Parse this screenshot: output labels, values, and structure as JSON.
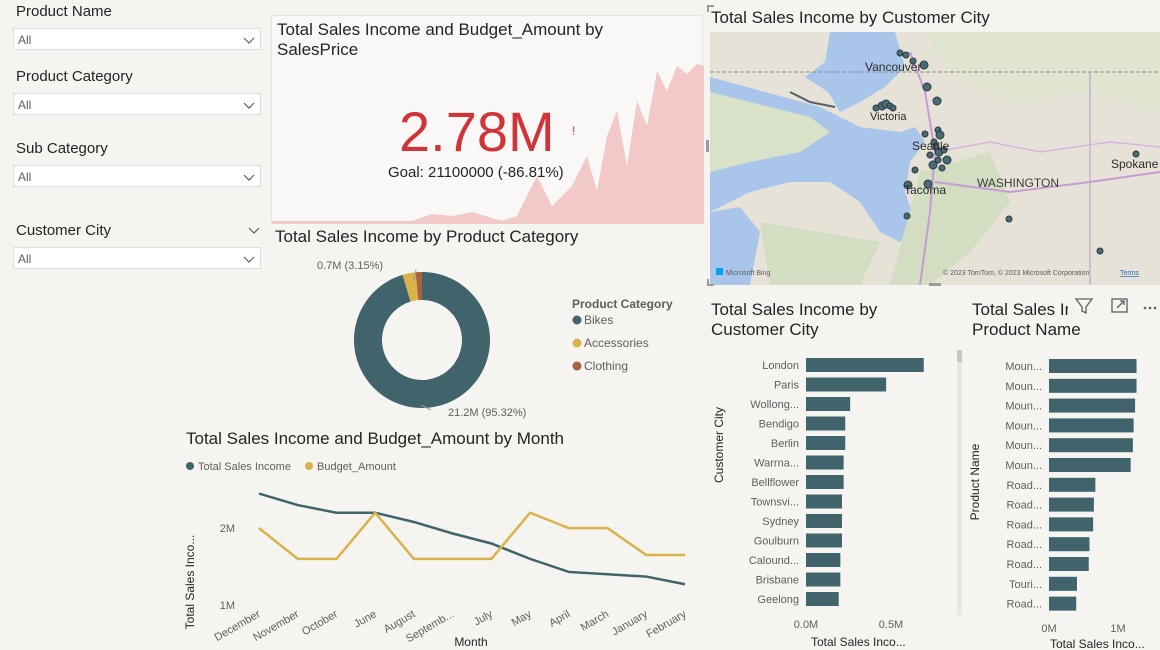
{
  "slicers": [
    {
      "title": "Product Name",
      "value": "All"
    },
    {
      "title": "Product Category",
      "value": "All"
    },
    {
      "title": "Sub Category",
      "value": "All"
    },
    {
      "title": "Customer City",
      "value": "All"
    }
  ],
  "kpi": {
    "title": "Total Sales Income and Budget_Amount by SalesPrice",
    "value": "2.78M",
    "marker": "!",
    "goal": "Goal: 21100000 (-86.81%)",
    "colors": {
      "value": "#d13438",
      "trend": "#f2c8c8"
    }
  },
  "map": {
    "title": "Total Sales Income by Customer City",
    "labels": [
      "Vancouver",
      "Victoria",
      "Seattle",
      "Tacoma",
      "WASHINGTON",
      "Spokane"
    ],
    "brand": "Microsoft Bing",
    "copyright": "© 2023 TomTom, © 2023 Microsoft Corporation",
    "terms": "Terms"
  },
  "donut": {
    "title": "Total Sales Income by Product Category",
    "legend_title": "Product Category",
    "label_small": "0.7M (3.15%)",
    "label_big": "21.2M (95.32%)"
  },
  "bar_city": {
    "title": "Total Sales Income by Customer City",
    "ylabel": "Customer City",
    "xlabel": "Total Sales Inco...",
    "ticks": [
      "0.0M",
      "0.5M"
    ]
  },
  "bar_product": {
    "title": "Total Sales Income by Product Name",
    "ylabel": "Product Name",
    "xlabel": "Total Sales Inco...",
    "ticks": [
      "0M",
      "1M"
    ]
  },
  "line": {
    "title": "Total Sales Income and Budget_Amount by Month",
    "legend": [
      "Total Sales Income",
      "Budget_Amount"
    ],
    "ylabel": "Total Sales Inco...",
    "xlabel": "Month",
    "yticks": [
      "2M",
      "1M"
    ]
  },
  "chart_data": [
    {
      "type": "pie",
      "title": "Total Sales Income by Product Category",
      "categories": [
        "Bikes",
        "Accessories",
        "Clothing"
      ],
      "values": [
        21.2,
        0.7,
        0.33
      ],
      "percent_labels": [
        "95.32%",
        "3.15%",
        ""
      ],
      "colors": [
        "#41636b",
        "#d9b24a",
        "#a8623e"
      ],
      "legend": "right"
    },
    {
      "type": "bar",
      "title": "Total Sales Income by Customer City",
      "categories": [
        "London",
        "Paris",
        "Wollong...",
        "Bendigo",
        "Berlin",
        "Warrna...",
        "Bellflower",
        "Townsvi...",
        "Sydney",
        "Goulburn",
        "Calound...",
        "Brisbane",
        "Geelong"
      ],
      "values": [
        0.72,
        0.49,
        0.27,
        0.24,
        0.24,
        0.23,
        0.23,
        0.22,
        0.22,
        0.22,
        0.21,
        0.21,
        0.2
      ],
      "xlim": [
        0,
        0.85
      ],
      "color": "#41636b"
    },
    {
      "type": "bar",
      "title": "Total Sales Income by Product Name",
      "categories": [
        "Moun...",
        "Moun...",
        "Moun...",
        "Moun...",
        "Moun...",
        "Moun...",
        "Road...",
        "Road...",
        "Road...",
        "Road...",
        "Road...",
        "Touri...",
        "Road..."
      ],
      "values": [
        1.19,
        1.19,
        1.17,
        1.15,
        1.14,
        1.11,
        0.63,
        0.61,
        0.6,
        0.55,
        0.54,
        0.38,
        0.37
      ],
      "xlim": [
        0,
        1.4
      ],
      "color": "#41636b"
    },
    {
      "type": "line",
      "title": "Total Sales Income and Budget_Amount by Month",
      "categories": [
        "December",
        "November",
        "October",
        "June",
        "August",
        "Septemb...",
        "July",
        "May",
        "April",
        "March",
        "January",
        "February"
      ],
      "series": [
        {
          "name": "Total Sales Income",
          "values": [
            2.45,
            2.3,
            2.2,
            2.2,
            2.08,
            1.93,
            1.8,
            1.6,
            1.43,
            1.4,
            1.37,
            1.27
          ],
          "color": "#41636b"
        },
        {
          "name": "Budget_Amount",
          "values": [
            2.0,
            1.6,
            1.6,
            2.2,
            1.6,
            1.6,
            1.6,
            2.2,
            2.0,
            2.0,
            1.65,
            1.65
          ],
          "color": "#d9b24a"
        }
      ],
      "ylim": [
        1.0,
        2.6
      ],
      "yticks": [
        1,
        2
      ],
      "legend": "top-left"
    }
  ]
}
